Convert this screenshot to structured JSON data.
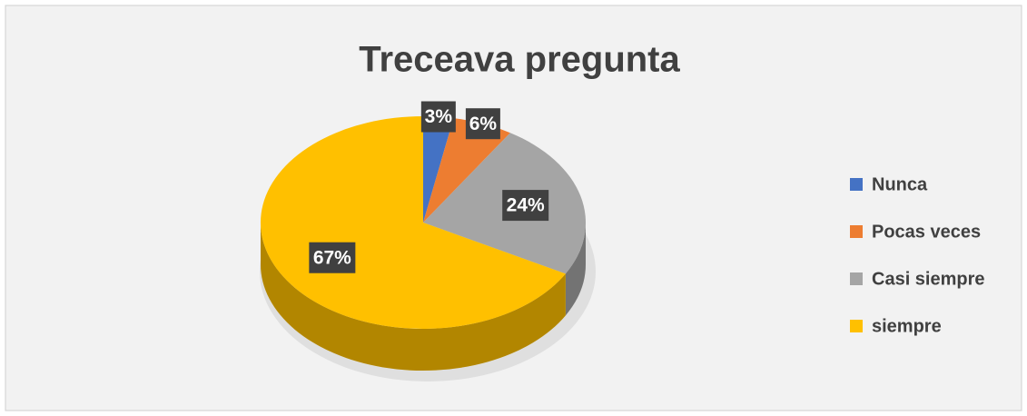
{
  "chart_data": {
    "type": "pie",
    "title": "Treceava pregunta",
    "categories": [
      "Nunca",
      "Pocas veces",
      "Casi siempre",
      "siempre"
    ],
    "values": [
      3,
      6,
      24,
      67
    ],
    "value_labels": [
      "3%",
      "6%",
      "24%",
      "67%"
    ],
    "colors": [
      "#4472c4",
      "#ed7d31",
      "#a5a5a5",
      "#ffc000"
    ],
    "legend": "right"
  }
}
